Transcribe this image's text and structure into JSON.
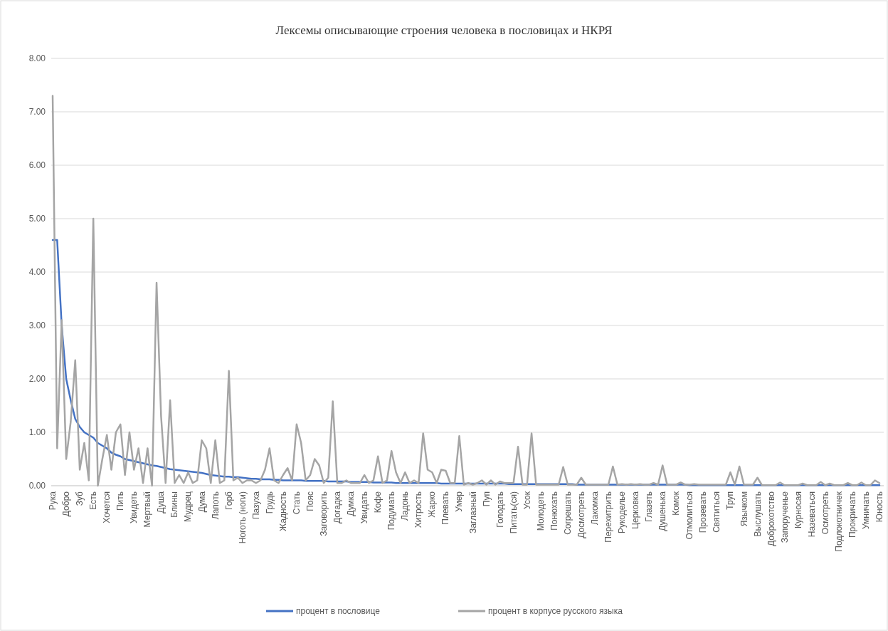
{
  "chart_data": {
    "type": "line",
    "title": "Лексемы описывающие  строения  человека в пословицах  и НКРЯ",
    "categories": [
      "Рука",
      null,
      null,
      "Добро",
      null,
      null,
      "Зуб",
      null,
      null,
      "Есть",
      null,
      null,
      "Хочется",
      null,
      null,
      "Пить",
      null,
      null,
      "Увидеть",
      null,
      null,
      "Мертвый",
      null,
      null,
      "Душа",
      null,
      null,
      "Блины",
      null,
      null,
      "Мудрец",
      null,
      null,
      "Дума",
      null,
      null,
      "Лапоть",
      null,
      null,
      "Горб",
      null,
      null,
      "Ноготь (ноги)",
      null,
      null,
      "Пазуха",
      null,
      null,
      "Грудь",
      null,
      null,
      "Жадность",
      null,
      null,
      "Стать",
      null,
      null,
      "Пояс",
      null,
      null,
      "Заговорить",
      null,
      null,
      "Догадка",
      null,
      null,
      "Думка",
      null,
      null,
      "Увидать",
      null,
      null,
      "Кофе",
      null,
      null,
      "Подумать",
      null,
      null,
      "Ладонь",
      null,
      null,
      "Хитрость",
      null,
      null,
      "Жарко",
      null,
      null,
      "Плевать",
      null,
      null,
      "Умер",
      null,
      null,
      "Заглазный",
      null,
      null,
      "Пуп",
      null,
      null,
      "Голодать",
      null,
      null,
      "Питать(ся)",
      null,
      null,
      "Усок",
      null,
      null,
      "Молодеть",
      null,
      null,
      "Понюхать",
      null,
      null,
      "Согрешать",
      null,
      null,
      "Досмотреть",
      null,
      null,
      "Лакомка",
      null,
      null,
      "Перехитрить",
      null,
      null,
      "Рукоделье",
      null,
      null,
      "Церковка",
      null,
      null,
      "Глазеть",
      null,
      null,
      "Душенька",
      null,
      null,
      "Комок",
      null,
      null,
      "Отмолиться",
      null,
      null,
      "Прозевать",
      null,
      null,
      "Святиться",
      null,
      null,
      "Труп",
      null,
      null,
      "Язычком",
      null,
      null,
      "Выслушать",
      null,
      null,
      "Доброхотство",
      null,
      null,
      "Запорученье",
      null,
      null,
      "Курносая",
      null,
      null,
      "Назеваться",
      null,
      null,
      "Осмотреть",
      null,
      null,
      "Подлокотничек",
      null,
      null,
      "Прокричать",
      null,
      null,
      "Умничать",
      null,
      null,
      "Юность"
    ],
    "series": [
      {
        "name": "процент в пословице",
        "color": "#4472c4",
        "values": [
          4.6,
          4.6,
          3.0,
          2.0,
          1.6,
          1.25,
          1.1,
          1.0,
          0.95,
          0.9,
          0.8,
          0.75,
          0.7,
          0.62,
          0.58,
          0.55,
          0.5,
          0.48,
          0.46,
          0.44,
          0.42,
          0.4,
          0.38,
          0.37,
          0.35,
          0.33,
          0.31,
          0.3,
          0.29,
          0.28,
          0.27,
          0.26,
          0.25,
          0.24,
          0.22,
          0.2,
          0.19,
          0.18,
          0.17,
          0.17,
          0.16,
          0.16,
          0.15,
          0.14,
          0.13,
          0.13,
          0.12,
          0.12,
          0.12,
          0.11,
          0.11,
          0.1,
          0.1,
          0.1,
          0.1,
          0.1,
          0.09,
          0.09,
          0.09,
          0.09,
          0.09,
          0.08,
          0.08,
          0.08,
          0.08,
          0.08,
          0.07,
          0.07,
          0.07,
          0.07,
          0.07,
          0.06,
          0.06,
          0.06,
          0.06,
          0.06,
          0.05,
          0.05,
          0.05,
          0.05,
          0.05,
          0.05,
          0.05,
          0.05,
          0.05,
          0.05,
          0.04,
          0.04,
          0.04,
          0.04,
          0.04,
          0.04,
          0.04,
          0.04,
          0.04,
          0.04,
          0.04,
          0.04,
          0.04,
          0.04,
          0.04,
          0.03,
          0.03,
          0.03,
          0.03,
          0.03,
          0.03,
          0.03,
          0.03,
          0.03,
          0.03,
          0.03,
          0.03,
          0.03,
          0.03,
          0.03,
          0.02,
          0.02,
          0.02,
          0.02,
          0.02,
          0.02,
          0.02,
          0.02,
          0.02,
          0.02,
          0.02,
          0.02,
          0.02,
          0.02,
          0.02,
          0.02,
          0.02,
          0.02,
          0.02,
          0.02,
          0.02,
          0.02,
          0.02,
          0.02,
          0.02,
          0.01,
          0.01,
          0.01,
          0.01,
          0.01,
          0.01,
          0.01,
          0.01,
          0.01,
          0.01,
          0.01,
          0.01,
          0.01,
          0.01,
          0.01,
          0.01,
          0.01,
          0.01,
          0.01,
          0.01,
          0.01,
          0.01,
          0.01,
          0.01,
          0.01,
          0.01,
          0.01,
          0.01,
          0.01,
          0.01,
          0.01,
          0.01,
          0.01,
          0.01,
          0.01,
          0.01,
          0.01,
          0.01,
          0.01,
          0.01,
          0.01,
          0.01,
          0.01
        ]
      },
      {
        "name": "процент в корпусе русского языка",
        "color": "#a5a5a5",
        "values": [
          7.3,
          0.7,
          3.1,
          0.5,
          1.2,
          2.35,
          0.3,
          0.8,
          0.1,
          5.0,
          0.0,
          0.5,
          0.95,
          0.3,
          1.0,
          1.15,
          0.2,
          1.0,
          0.3,
          0.7,
          0.05,
          0.7,
          0.0,
          3.8,
          1.3,
          0.05,
          1.6,
          0.05,
          0.2,
          0.05,
          0.25,
          0.05,
          0.1,
          0.85,
          0.7,
          0.05,
          0.85,
          0.05,
          0.1,
          2.15,
          0.1,
          0.15,
          0.05,
          0.1,
          0.1,
          0.05,
          0.1,
          0.3,
          0.7,
          0.1,
          0.05,
          0.2,
          0.33,
          0.1,
          1.15,
          0.8,
          0.1,
          0.2,
          0.5,
          0.38,
          0.05,
          0.15,
          1.58,
          0.05,
          0.05,
          0.1,
          0.05,
          0.05,
          0.05,
          0.2,
          0.05,
          0.1,
          0.55,
          0.05,
          0.1,
          0.65,
          0.25,
          0.05,
          0.25,
          0.05,
          0.1,
          0.05,
          0.98,
          0.3,
          0.25,
          0.05,
          0.3,
          0.28,
          0.05,
          0.05,
          0.93,
          0.02,
          0.05,
          0.02,
          0.05,
          0.1,
          0.02,
          0.1,
          0.02,
          0.08,
          0.05,
          0.05,
          0.05,
          0.73,
          0.02,
          0.02,
          0.98,
          0.02,
          0.02,
          0.02,
          0.02,
          0.02,
          0.02,
          0.35,
          0.02,
          0.02,
          0.02,
          0.15,
          0.02,
          0.02,
          0.02,
          0.02,
          0.02,
          0.02,
          0.36,
          0.02,
          0.03,
          0.02,
          0.03,
          0.02,
          0.03,
          0.02,
          0.02,
          0.05,
          0.02,
          0.38,
          0.02,
          0.02,
          0.02,
          0.06,
          0.02,
          0.02,
          0.03,
          0.02,
          0.02,
          0.02,
          0.02,
          0.02,
          0.02,
          0.02,
          0.25,
          0.02,
          0.36,
          0.02,
          0.02,
          0.02,
          0.15,
          0.01,
          0.01,
          0.01,
          0.01,
          0.06,
          0.01,
          0.01,
          0.01,
          0.01,
          0.04,
          0.01,
          0.01,
          0.01,
          0.07,
          0.01,
          0.04,
          0.01,
          0.01,
          0.01,
          0.05,
          0.01,
          0.01,
          0.06,
          0.01,
          0.01,
          0.1,
          0.05
        ]
      }
    ],
    "ylim": [
      0,
      8
    ],
    "yticks": [
      {
        "value": 0,
        "label": "0.00"
      },
      {
        "value": 1,
        "label": "1.00"
      },
      {
        "value": 2,
        "label": "2.00"
      },
      {
        "value": 3,
        "label": "3.00"
      },
      {
        "value": 4,
        "label": "4.00"
      },
      {
        "value": 5,
        "label": "5.00"
      },
      {
        "value": 6,
        "label": "6.00"
      },
      {
        "value": 7,
        "label": "7.00"
      },
      {
        "value": 8,
        "label": "8.00"
      }
    ],
    "grid": "y",
    "legend": "bottom"
  }
}
